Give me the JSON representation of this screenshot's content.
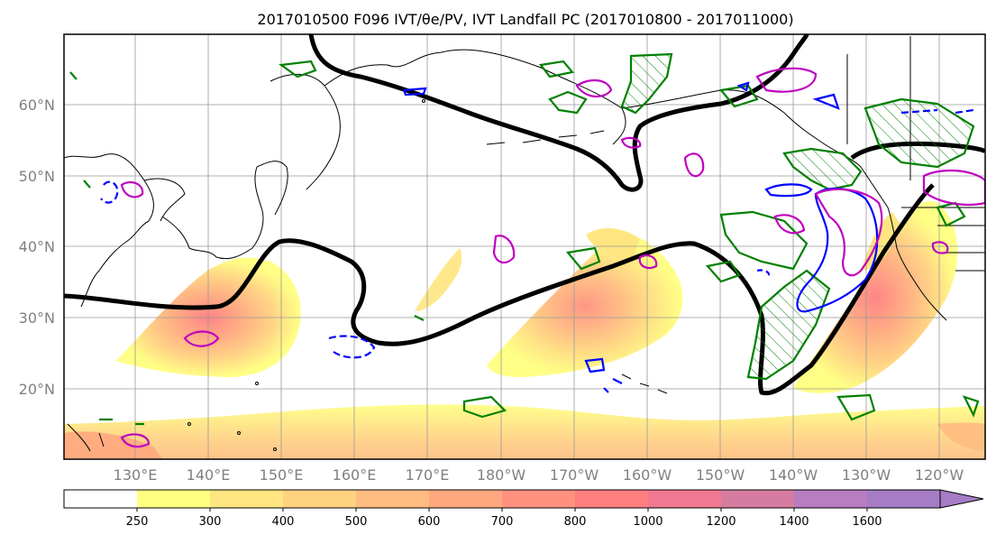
{
  "title": "2017010500 F096 IVT/θe/PV, IVT Landfall PC (2017010800 - 2017011000)",
  "map": {
    "lat_labels": [
      "60°N",
      "50°N",
      "40°N",
      "30°N",
      "20°N"
    ],
    "lon_labels": [
      "130°E",
      "140°E",
      "150°E",
      "160°E",
      "170°E",
      "180°W",
      "170°W",
      "160°W",
      "150°W",
      "140°W",
      "130°W",
      "120°W"
    ],
    "layers": {
      "ivt_shading": "IVT filled contours (yellow–red–purple)",
      "black_contour": "thick black contour",
      "blue_contours": "blue contours (solid/dashed)",
      "magenta_contours": "magenta contours",
      "green_contours": "green contours (hatched)"
    }
  },
  "colorbar": {
    "levels": [
      "250",
      "300",
      "400",
      "500",
      "600",
      "700",
      "800",
      "1000",
      "1200",
      "1400",
      "1600"
    ],
    "colors": [
      "#ffffff",
      "#ffff80",
      "#ffe680",
      "#ffd27f",
      "#ffbc80",
      "#ffa77e",
      "#ff917e",
      "#ff7e80",
      "#f07890",
      "#d67ca0",
      "#b87cc0",
      "#a57cc5"
    ]
  },
  "colors": {
    "ivt_low": "#ffff80",
    "ivt_mid": "#ffbc80",
    "ivt_high": "#ff8a7a",
    "black_contour": "#000000",
    "blue": "#0000ff",
    "magenta": "#c000c0",
    "green": "#008000",
    "grid": "#999999",
    "axis_label": "#808080"
  }
}
